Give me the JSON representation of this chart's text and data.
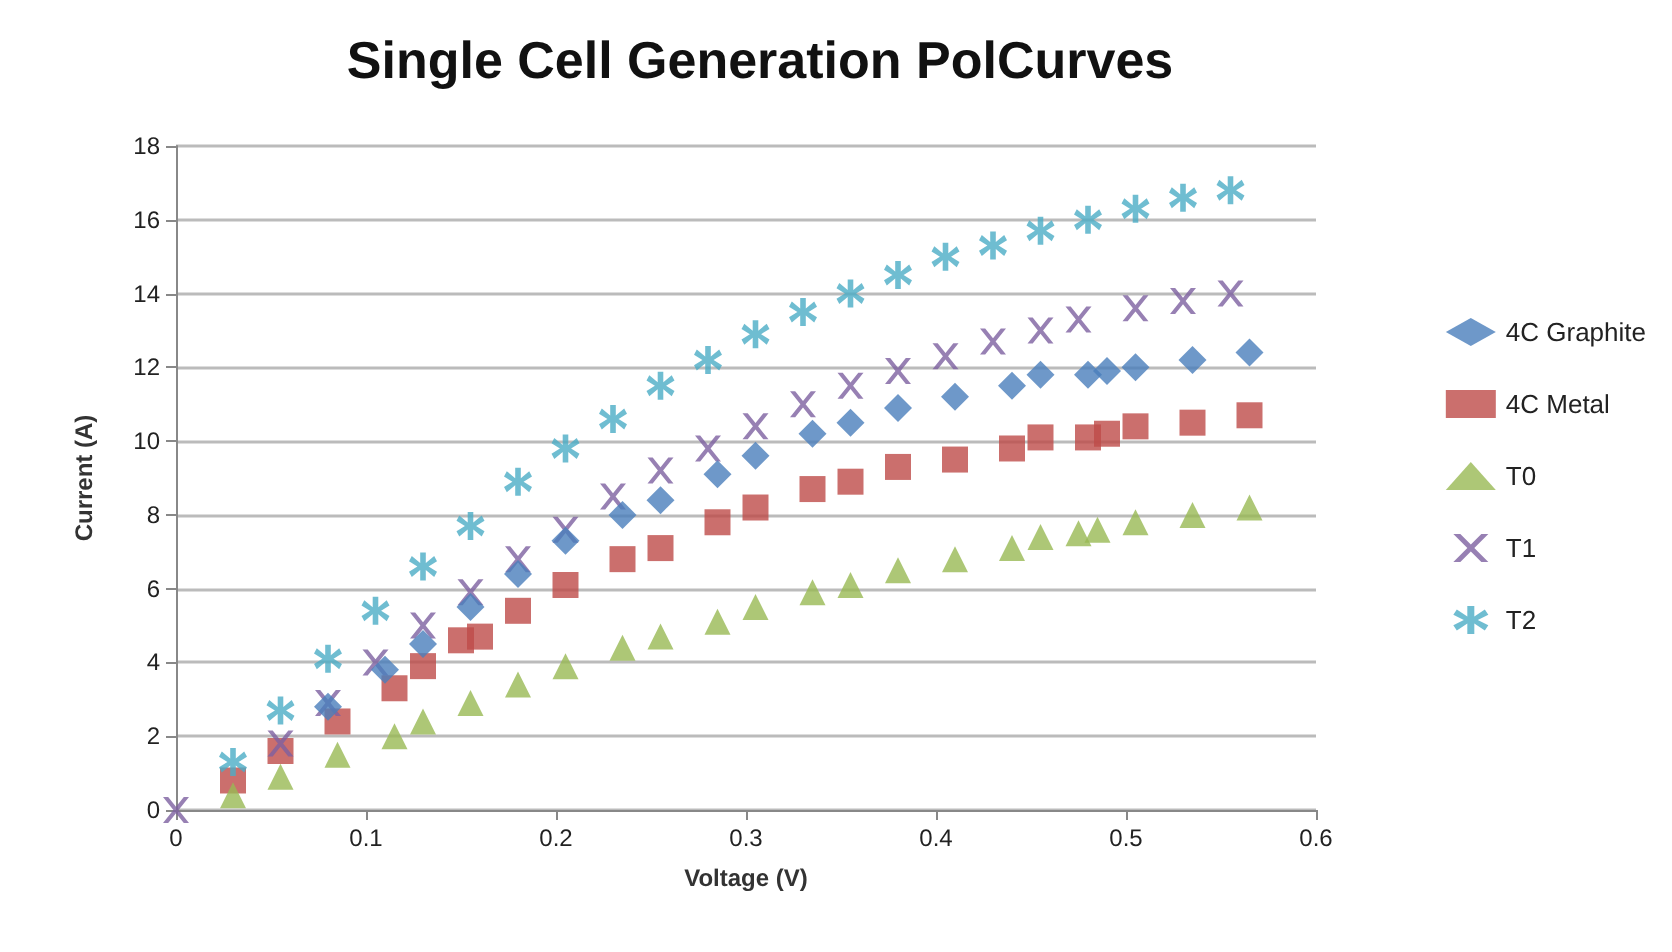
{
  "chart_data": {
    "type": "scatter",
    "title": "Single Cell Generation PolCurves",
    "xlabel": "Voltage (V)",
    "ylabel": "Current (A)",
    "xlim": [
      0,
      0.6
    ],
    "xticks": [
      0,
      0.1,
      0.2,
      0.3,
      0.4,
      0.5,
      0.6
    ],
    "ylim": [
      0,
      18
    ],
    "yticks": [
      0,
      2,
      4,
      6,
      8,
      10,
      12,
      14,
      16,
      18
    ],
    "grid": "y",
    "legend": "right",
    "series": [
      {
        "name": "4C Graphite",
        "color": "#4a7ebb",
        "marker": "diamond",
        "x": [
          0.08,
          0.11,
          0.13,
          0.155,
          0.18,
          0.205,
          0.235,
          0.255,
          0.285,
          0.305,
          0.335,
          0.355,
          0.38,
          0.41,
          0.44,
          0.455,
          0.48,
          0.49,
          0.505,
          0.535,
          0.565
        ],
        "values": [
          2.8,
          3.8,
          4.5,
          5.5,
          6.4,
          7.3,
          8.0,
          8.4,
          9.1,
          9.6,
          10.2,
          10.5,
          10.9,
          11.2,
          11.5,
          11.8,
          11.8,
          11.9,
          12.0,
          12.2,
          12.4
        ]
      },
      {
        "name": "4C Metal",
        "color": "#be4b48",
        "marker": "square",
        "x": [
          0.03,
          0.055,
          0.085,
          0.115,
          0.13,
          0.15,
          0.16,
          0.18,
          0.205,
          0.235,
          0.255,
          0.285,
          0.305,
          0.335,
          0.355,
          0.38,
          0.41,
          0.44,
          0.455,
          0.48,
          0.49,
          0.505,
          0.535,
          0.565
        ],
        "values": [
          0.8,
          1.6,
          2.4,
          3.3,
          3.9,
          4.6,
          4.7,
          5.4,
          6.1,
          6.8,
          7.1,
          7.8,
          8.2,
          8.7,
          8.9,
          9.3,
          9.5,
          9.8,
          10.1,
          10.1,
          10.2,
          10.4,
          10.5,
          10.7
        ]
      },
      {
        "name": "T0",
        "color": "#98b954",
        "marker": "triangle",
        "x": [
          0.03,
          0.055,
          0.085,
          0.115,
          0.13,
          0.155,
          0.18,
          0.205,
          0.235,
          0.255,
          0.285,
          0.305,
          0.335,
          0.355,
          0.38,
          0.41,
          0.44,
          0.455,
          0.475,
          0.485,
          0.505,
          0.535,
          0.565
        ],
        "values": [
          0.4,
          0.9,
          1.5,
          2.0,
          2.4,
          2.9,
          3.4,
          3.9,
          4.4,
          4.7,
          5.1,
          5.5,
          5.9,
          6.1,
          6.5,
          6.8,
          7.1,
          7.4,
          7.5,
          7.6,
          7.8,
          8.0,
          8.2
        ]
      },
      {
        "name": "T1",
        "color": "#7d60a0",
        "marker": "cross",
        "x": [
          0,
          0.055,
          0.08,
          0.105,
          0.13,
          0.155,
          0.18,
          0.205,
          0.23,
          0.255,
          0.28,
          0.305,
          0.33,
          0.355,
          0.38,
          0.405,
          0.43,
          0.455,
          0.475,
          0.505,
          0.53,
          0.555
        ],
        "values": [
          0,
          1.8,
          2.9,
          4.0,
          5.0,
          5.9,
          6.8,
          7.6,
          8.5,
          9.2,
          9.8,
          10.4,
          11.0,
          11.5,
          11.9,
          12.3,
          12.7,
          13.0,
          13.3,
          13.6,
          13.8,
          14.0
        ]
      },
      {
        "name": "T2",
        "color": "#4bacc6",
        "marker": "star",
        "x": [
          0.03,
          0.055,
          0.08,
          0.105,
          0.13,
          0.155,
          0.18,
          0.205,
          0.23,
          0.255,
          0.28,
          0.305,
          0.33,
          0.355,
          0.38,
          0.405,
          0.43,
          0.455,
          0.48,
          0.505,
          0.53,
          0.555
        ],
        "values": [
          1.3,
          2.7,
          4.1,
          5.4,
          6.6,
          7.7,
          8.9,
          9.8,
          10.6,
          11.5,
          12.2,
          12.9,
          13.5,
          14.0,
          14.5,
          15.0,
          15.3,
          15.7,
          16.0,
          16.3,
          16.6,
          16.8
        ]
      }
    ]
  }
}
